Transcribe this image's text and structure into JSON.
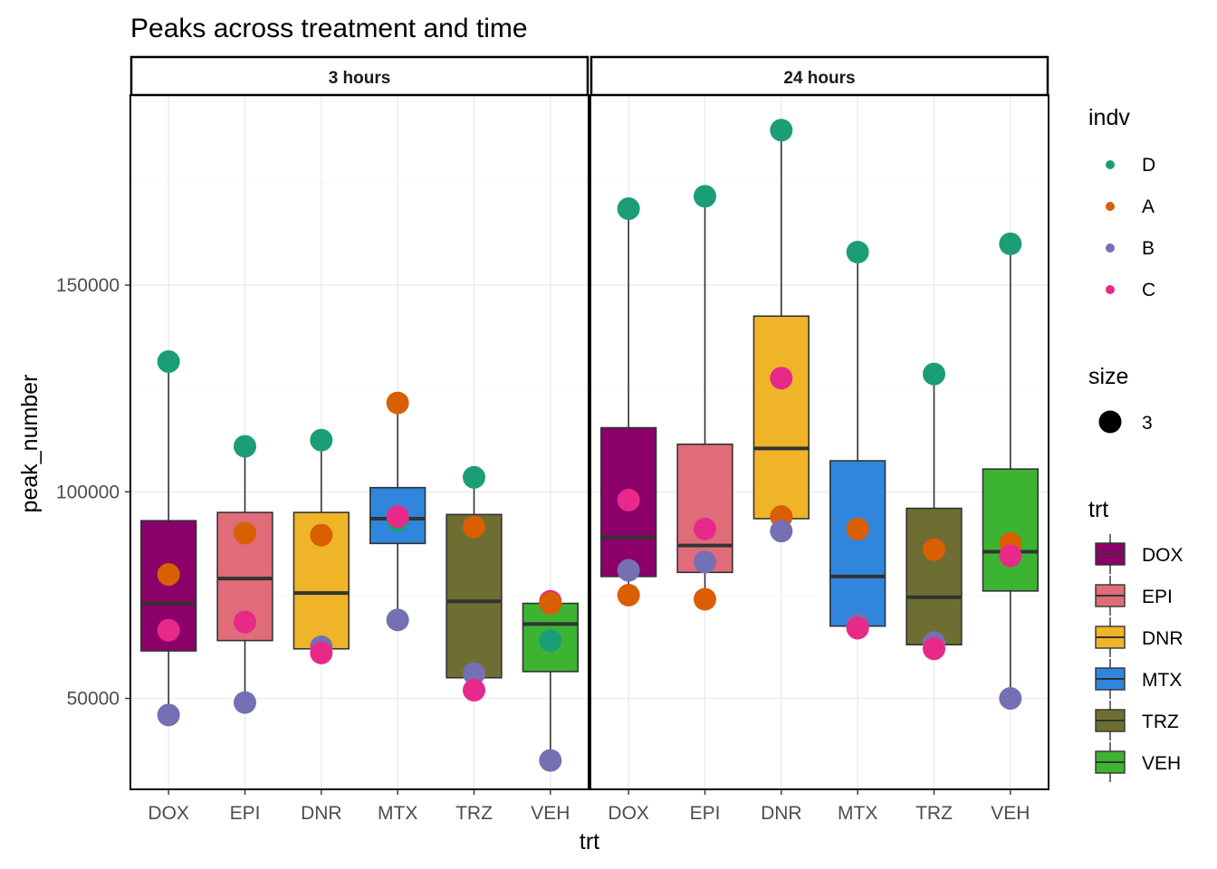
{
  "chart_data": {
    "type": "boxplot",
    "title": "Peaks across treatment and time",
    "xlabel": "trt",
    "ylabel": "peak_number",
    "ylim": [
      28000,
      196000
    ],
    "yticks": [
      50000,
      100000,
      150000
    ],
    "ytick_labels": [
      "50000",
      "100000",
      "150000"
    ],
    "grid": true,
    "facets": [
      "3 hours",
      "24 hours"
    ],
    "categories": [
      "DOX",
      "EPI",
      "DNR",
      "MTX",
      "TRZ",
      "VEH"
    ],
    "trt_colors": {
      "DOX": "#8B0069",
      "EPI": "#E06C7A",
      "DNR": "#F0B428",
      "MTX": "#2F86DC",
      "TRZ": "#6E6E32",
      "VEH": "#3CB432"
    },
    "indv_colors": {
      "D": "#1B9E77",
      "A": "#D95F02",
      "B": "#7570B3",
      "C": "#E7298A"
    },
    "panels": [
      {
        "facet": "3 hours",
        "boxes": [
          {
            "trt": "DOX",
            "whisker_low": 46000,
            "q1": 61500,
            "median": 73000,
            "q3": 93000,
            "whisker_high": 131500
          },
          {
            "trt": "EPI",
            "whisker_low": 49000,
            "q1": 64000,
            "median": 79000,
            "q3": 95000,
            "whisker_high": 111000
          },
          {
            "trt": "DNR",
            "whisker_low": 61000,
            "q1": 62000,
            "median": 75500,
            "q3": 95000,
            "whisker_high": 112500
          },
          {
            "trt": "MTX",
            "whisker_low": 69000,
            "q1": 87500,
            "median": 93500,
            "q3": 101000,
            "whisker_high": 121500
          },
          {
            "trt": "TRZ",
            "whisker_low": 52000,
            "q1": 55000,
            "median": 73500,
            "q3": 94500,
            "whisker_high": 103500
          },
          {
            "trt": "VEH",
            "whisker_low": 35000,
            "q1": 56500,
            "median": 68000,
            "q3": 73000,
            "whisker_high": 73500
          }
        ],
        "points": [
          {
            "trt": "DOX",
            "indv": "D",
            "y": 131500
          },
          {
            "trt": "DOX",
            "indv": "A",
            "y": 80000
          },
          {
            "trt": "DOX",
            "indv": "C",
            "y": 66500
          },
          {
            "trt": "DOX",
            "indv": "B",
            "y": 46000
          },
          {
            "trt": "EPI",
            "indv": "D",
            "y": 111000
          },
          {
            "trt": "EPI",
            "indv": "A",
            "y": 90000
          },
          {
            "trt": "EPI",
            "indv": "C",
            "y": 68500
          },
          {
            "trt": "EPI",
            "indv": "B",
            "y": 49000
          },
          {
            "trt": "DNR",
            "indv": "D",
            "y": 112500
          },
          {
            "trt": "DNR",
            "indv": "A",
            "y": 89500
          },
          {
            "trt": "DNR",
            "indv": "B",
            "y": 62500
          },
          {
            "trt": "DNR",
            "indv": "C",
            "y": 61000
          },
          {
            "trt": "MTX",
            "indv": "A",
            "y": 121500
          },
          {
            "trt": "MTX",
            "indv": "D",
            "y": 93000
          },
          {
            "trt": "MTX",
            "indv": "C",
            "y": 94000
          },
          {
            "trt": "MTX",
            "indv": "B",
            "y": 69000
          },
          {
            "trt": "TRZ",
            "indv": "D",
            "y": 103500
          },
          {
            "trt": "TRZ",
            "indv": "A",
            "y": 91500
          },
          {
            "trt": "TRZ",
            "indv": "B",
            "y": 56000
          },
          {
            "trt": "TRZ",
            "indv": "C",
            "y": 52000
          },
          {
            "trt": "VEH",
            "indv": "C",
            "y": 73500
          },
          {
            "trt": "VEH",
            "indv": "D",
            "y": 64000
          },
          {
            "trt": "VEH",
            "indv": "A",
            "y": 73000
          },
          {
            "trt": "VEH",
            "indv": "B",
            "y": 35000
          }
        ]
      },
      {
        "facet": "24 hours",
        "boxes": [
          {
            "trt": "DOX",
            "whisker_low": 75000,
            "q1": 79500,
            "median": 89000,
            "q3": 115500,
            "whisker_high": 168500
          },
          {
            "trt": "EPI",
            "whisker_low": 74000,
            "q1": 80500,
            "median": 87000,
            "q3": 111500,
            "whisker_high": 171500
          },
          {
            "trt": "DNR",
            "whisker_low": 90500,
            "q1": 93500,
            "median": 110500,
            "q3": 142500,
            "whisker_high": 187500
          },
          {
            "trt": "MTX",
            "whisker_low": 67000,
            "q1": 67500,
            "median": 79500,
            "q3": 107500,
            "whisker_high": 158000
          },
          {
            "trt": "TRZ",
            "whisker_low": 62000,
            "q1": 63000,
            "median": 74500,
            "q3": 96000,
            "whisker_high": 128500
          },
          {
            "trt": "VEH",
            "whisker_low": 50000,
            "q1": 76000,
            "median": 85500,
            "q3": 105500,
            "whisker_high": 160000
          }
        ],
        "points": [
          {
            "trt": "DOX",
            "indv": "D",
            "y": 168500
          },
          {
            "trt": "DOX",
            "indv": "C",
            "y": 98000
          },
          {
            "trt": "DOX",
            "indv": "B",
            "y": 81000
          },
          {
            "trt": "DOX",
            "indv": "A",
            "y": 75000
          },
          {
            "trt": "EPI",
            "indv": "D",
            "y": 171500
          },
          {
            "trt": "EPI",
            "indv": "C",
            "y": 91000
          },
          {
            "trt": "EPI",
            "indv": "B",
            "y": 83000
          },
          {
            "trt": "EPI",
            "indv": "A",
            "y": 74000
          },
          {
            "trt": "DNR",
            "indv": "D",
            "y": 187500
          },
          {
            "trt": "DNR",
            "indv": "C",
            "y": 127500
          },
          {
            "trt": "DNR",
            "indv": "A",
            "y": 94000
          },
          {
            "trt": "DNR",
            "indv": "B",
            "y": 90500
          },
          {
            "trt": "MTX",
            "indv": "D",
            "y": 158000
          },
          {
            "trt": "MTX",
            "indv": "A",
            "y": 91000
          },
          {
            "trt": "MTX",
            "indv": "B",
            "y": 68000
          },
          {
            "trt": "MTX",
            "indv": "C",
            "y": 67000
          },
          {
            "trt": "TRZ",
            "indv": "D",
            "y": 128500
          },
          {
            "trt": "TRZ",
            "indv": "A",
            "y": 86000
          },
          {
            "trt": "TRZ",
            "indv": "B",
            "y": 63500
          },
          {
            "trt": "TRZ",
            "indv": "C",
            "y": 62000
          },
          {
            "trt": "VEH",
            "indv": "D",
            "y": 160000
          },
          {
            "trt": "VEH",
            "indv": "A",
            "y": 87500
          },
          {
            "trt": "VEH",
            "indv": "C",
            "y": 84500
          },
          {
            "trt": "VEH",
            "indv": "B",
            "y": 50000
          }
        ]
      }
    ],
    "legends": [
      {
        "title": "indv",
        "kind": "point",
        "items": [
          "D",
          "A",
          "B",
          "C"
        ]
      },
      {
        "title": "size",
        "kind": "size",
        "items": [
          "3"
        ]
      },
      {
        "title": "trt",
        "kind": "box",
        "items": [
          "DOX",
          "EPI",
          "DNR",
          "MTX",
          "TRZ",
          "VEH"
        ]
      }
    ],
    "legend_position": "right"
  }
}
